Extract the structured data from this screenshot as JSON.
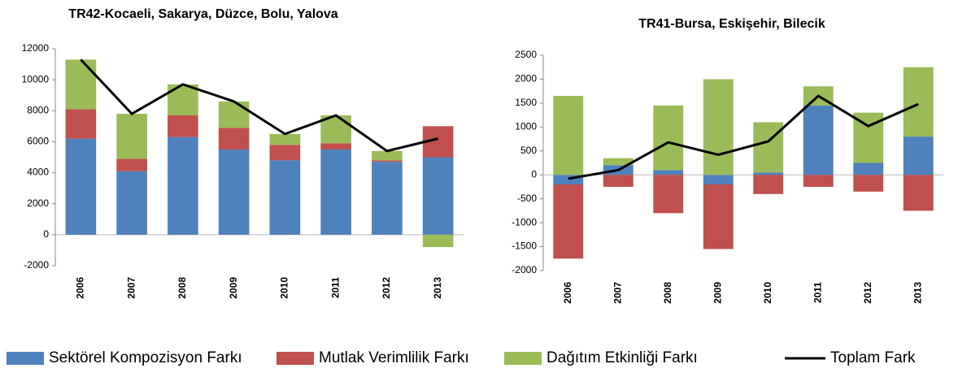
{
  "chart_data": [
    {
      "type": "bar",
      "stacked": true,
      "title": "TR42-Kocaeli, Sakarya, Düzce, Bolu, Yalova",
      "categories": [
        "2006",
        "2007",
        "2008",
        "2009",
        "2010",
        "2011",
        "2012",
        "2013"
      ],
      "ylim": [
        -2000,
        12000
      ],
      "yticks": [
        -2000,
        0,
        2000,
        4000,
        6000,
        8000,
        10000,
        12000
      ],
      "series": [
        {
          "name": "Sektörel Kompozisyon Farkı",
          "color": "#4f81bd",
          "values": [
            6200,
            4100,
            6300,
            5500,
            4800,
            5500,
            4700,
            5000
          ]
        },
        {
          "name": "Mutlak Verimlilik Farkı",
          "color": "#c0504d",
          "values": [
            1900,
            800,
            1400,
            1400,
            1000,
            400,
            100,
            2000
          ]
        },
        {
          "name": "Dağıtım Etkinliği Farkı",
          "color": "#9bbb59",
          "values": [
            3200,
            2900,
            2000,
            1700,
            700,
            1800,
            600,
            -800
          ]
        },
        {
          "name": "Toplam Fark",
          "color": "#000000",
          "type": "line",
          "values": [
            11300,
            7800,
            9700,
            8600,
            6500,
            7700,
            5400,
            6200
          ]
        }
      ]
    },
    {
      "type": "bar",
      "stacked": true,
      "title": "TR41-Bursa, Eskişehir, Bilecik",
      "categories": [
        "2006",
        "2007",
        "2008",
        "2009",
        "2010",
        "2011",
        "2012",
        "2013"
      ],
      "ylim": [
        -2000,
        2500
      ],
      "yticks": [
        -2000,
        -1500,
        -1000,
        -500,
        0,
        500,
        1000,
        1500,
        2000,
        2500
      ],
      "series": [
        {
          "name": "Sektörel Kompozisyon Farkı",
          "color": "#4f81bd",
          "values": [
            -200,
            200,
            100,
            -200,
            50,
            1450,
            250,
            800
          ]
        },
        {
          "name": "Mutlak Verimlilik Farkı",
          "color": "#c0504d",
          "values": [
            -1550,
            -250,
            -800,
            -1350,
            -400,
            -250,
            -350,
            -750
          ]
        },
        {
          "name": "Dağıtım Etkinliği Farkı",
          "color": "#9bbb59",
          "values": [
            1650,
            150,
            1350,
            2000,
            1050,
            400,
            1050,
            1450
          ]
        },
        {
          "name": "Toplam Fark",
          "color": "#000000",
          "type": "line",
          "values": [
            -80,
            100,
            680,
            420,
            700,
            1650,
            1020,
            1480
          ]
        }
      ]
    }
  ]
}
